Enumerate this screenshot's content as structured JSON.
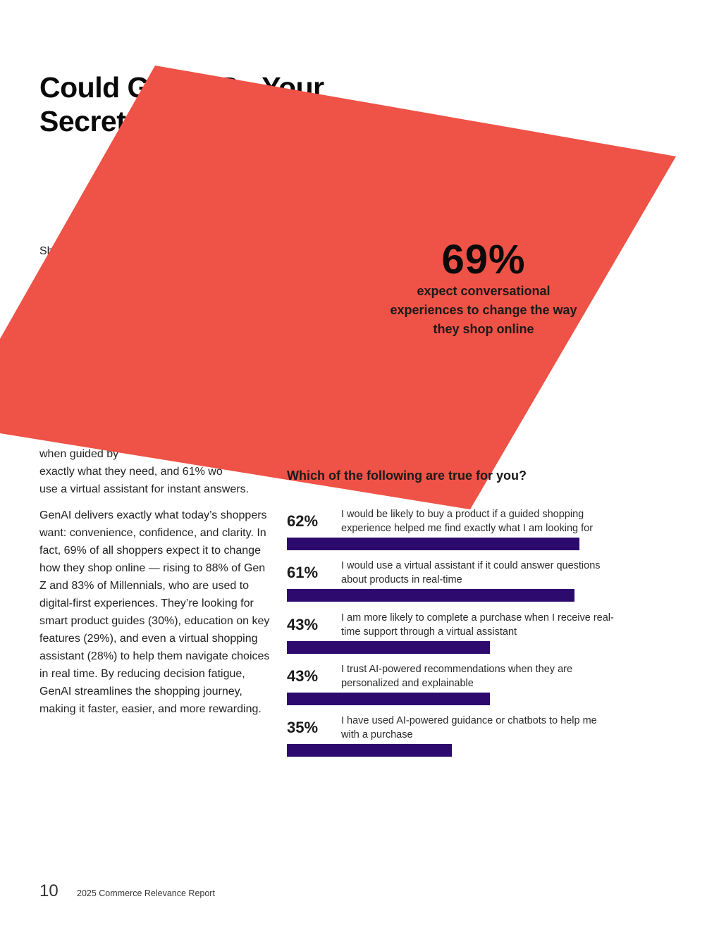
{
  "title": {
    "line1": "Could GenAI Be Your",
    "line2": "Secret"
  },
  "fragments": {
    "sh": "Sh",
    "guided": "when guided by"
  },
  "body": {
    "p1_tail": "exactly what they need, and 61% wo",
    "p1_end": "use a virtual assistant for instant answers.",
    "p2": "GenAI delivers exactly what today’s shoppers want: convenience, confidence, and clarity. In fact, 69% of all shoppers expect it to change how they shop online — rising to 88% of Gen Z and 83% of Millennials, who are used to digital-first experiences. They’re looking for smart product guides (30%), education on key features (29%), and even a virtual shopping assistant (28%) to help them navigate choices in real time. By reducing decision fatigue, GenAI streamlines the shopping journey, making it faster, easier, and more rewarding."
  },
  "callout": {
    "value": "69%",
    "line1": "expect conversational",
    "line2": "experiences  to change the way",
    "line3": "they shop online",
    "color": "#ef5246"
  },
  "chart_data": {
    "type": "bar",
    "title": "Which of the following are true for you?",
    "xlim": [
      0,
      70
    ],
    "bar_color": "#2d0a6e",
    "categories": [
      "I would be likely to buy a product if a guided shopping experience helped me find exactly what I am looking for",
      "I would use a virtual assistant if it could answer questions about products in real-time",
      "I am more likely to complete a purchase when I receive real-time support through a virtual assistant",
      "I trust AI-powered recommendations when they are personalized and explainable",
      "I have used AI-powered guidance or chatbots to help me with a purchase"
    ],
    "values": [
      62,
      61,
      43,
      43,
      35
    ],
    "value_labels": [
      "62%",
      "61%",
      "43%",
      "43%",
      "35%"
    ]
  },
  "footer": {
    "page_number": "10",
    "report_title": "2025 Commerce Relevance Report"
  }
}
